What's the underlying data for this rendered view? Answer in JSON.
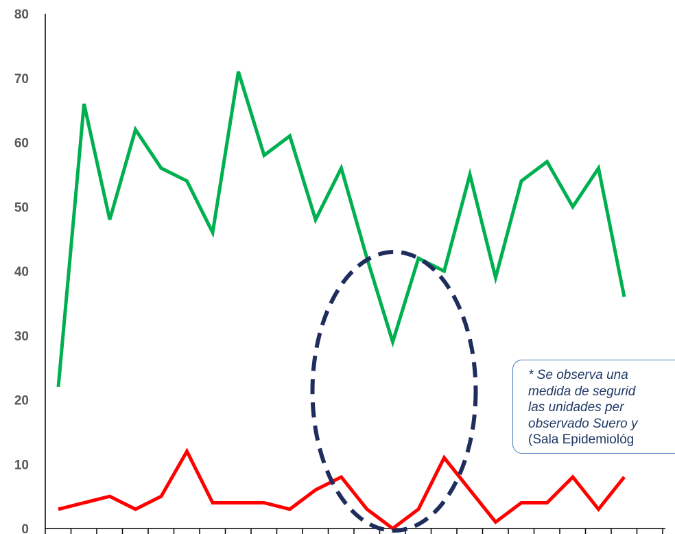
{
  "chart_data": {
    "type": "line",
    "title": "",
    "xlabel": "",
    "ylabel": "",
    "ylim": [
      0,
      80
    ],
    "yticks": [
      "0",
      "10",
      "20",
      "30",
      "40",
      "50",
      "60",
      "70",
      "80"
    ],
    "x": [
      1,
      2,
      3,
      4,
      5,
      6,
      7,
      8,
      9,
      10,
      11,
      12,
      13,
      14,
      15,
      16,
      17,
      18,
      19,
      20,
      21,
      22,
      23
    ],
    "grid": false,
    "series": [
      {
        "color": "#00b050",
        "values": [
          22,
          66,
          48,
          62,
          56,
          54,
          46,
          71,
          58,
          61,
          48,
          56,
          42,
          29,
          42,
          40,
          55,
          39,
          54,
          57,
          50,
          56,
          36
        ]
      },
      {
        "color": "#ff0000",
        "values": [
          3,
          4,
          5,
          3,
          5,
          12,
          4,
          4,
          4,
          3,
          6,
          8,
          3,
          0,
          3,
          11,
          6,
          1,
          4,
          4,
          8,
          3,
          8
        ]
      }
    ],
    "highlight_ellipse": {
      "color": "#1f2d5c",
      "style": "dashed",
      "around_x": [
        12,
        16
      ]
    },
    "annotation": {
      "text_italic": "* Se observa una\nmedida de segurid\nlas unidades per\nobservado Suero y",
      "text_plain": "(Sala Epidemiológ"
    }
  }
}
